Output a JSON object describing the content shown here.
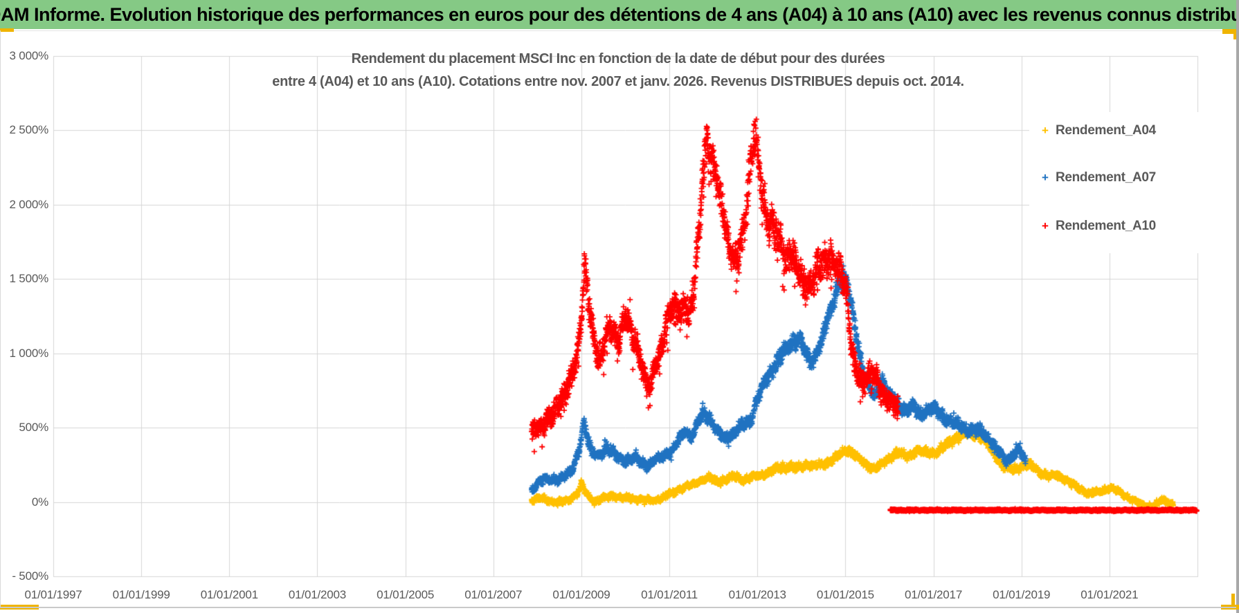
{
  "header": {
    "title": "ADAM Informe. Evolution historique des performances en euros pour des détentions de 4 ans (A04) à 10 ans (A10) avec les revenus connus distribués",
    "bg_color": "#85C985",
    "accent_color": "#EFB400"
  },
  "chart_data": {
    "type": "scatter",
    "title_line1": "Rendement du placement MSCI Inc en fonction de la date de début pour des durées",
    "title_line2": "entre 4 (A04) et 10 ans (A10). Cotations entre nov. 2007 et janv. 2026. Revenus DISTRIBUES depuis oct. 2014.",
    "title_color": "#595959",
    "grid_color": "#D6D6D6",
    "legend_position": "right",
    "x_axis": {
      "range": [
        1997,
        2023.0
      ],
      "gridline_years": [
        1997,
        1999,
        2001,
        2003,
        2005,
        2007,
        2009,
        2011,
        2013,
        2015,
        2017,
        2019,
        2021,
        2023
      ],
      "ticks": [
        {
          "label": "01/01/1997",
          "year": 1997
        },
        {
          "label": "01/01/1999",
          "year": 1999
        },
        {
          "label": "01/01/2001",
          "year": 2001
        },
        {
          "label": "01/01/2003",
          "year": 2003
        },
        {
          "label": "01/01/2005",
          "year": 2005
        },
        {
          "label": "01/01/2007",
          "year": 2007
        },
        {
          "label": "01/01/2009",
          "year": 2009
        },
        {
          "label": "01/01/2011",
          "year": 2011
        },
        {
          "label": "01/01/2013",
          "year": 2013
        },
        {
          "label": "01/01/2015",
          "year": 2015
        },
        {
          "label": "01/01/2017",
          "year": 2017
        },
        {
          "label": "01/01/2019",
          "year": 2019
        },
        {
          "label": "01/01/2021",
          "year": 2021
        }
      ]
    },
    "y_axis": {
      "range": [
        -500,
        3000
      ],
      "ticks": [
        {
          "label": "3 000%",
          "value": 3000
        },
        {
          "label": "2 500%",
          "value": 2500
        },
        {
          "label": "2 000%",
          "value": 2000
        },
        {
          "label": "1 500%",
          "value": 1500
        },
        {
          "label": "1 000%",
          "value": 1000
        },
        {
          "label": "500%",
          "value": 500
        },
        {
          "label": "0%",
          "value": 0
        },
        {
          "label": "- 500%",
          "value": -500
        }
      ]
    },
    "series": [
      {
        "name": "Rendement_A04",
        "color": "#FFC000",
        "marker": "plus",
        "in_legend": true,
        "scatter": {
          "step": 0.004,
          "jitter_base": 20,
          "jitter_scale": 0.035,
          "tail_bias": 0,
          "seed": 11
        },
        "points": [
          [
            2007.87,
            15
          ],
          [
            2008.1,
            25
          ],
          [
            2008.3,
            8
          ],
          [
            2008.5,
            0
          ],
          [
            2008.7,
            10
          ],
          [
            2008.9,
            55
          ],
          [
            2009.0,
            120
          ],
          [
            2009.1,
            55
          ],
          [
            2009.3,
            5
          ],
          [
            2009.5,
            25
          ],
          [
            2009.7,
            40
          ],
          [
            2009.9,
            30
          ],
          [
            2010.1,
            25
          ],
          [
            2010.3,
            20
          ],
          [
            2010.6,
            5
          ],
          [
            2010.9,
            35
          ],
          [
            2011.1,
            65
          ],
          [
            2011.3,
            95
          ],
          [
            2011.5,
            115
          ],
          [
            2011.7,
            145
          ],
          [
            2011.9,
            160
          ],
          [
            2012.1,
            135
          ],
          [
            2012.3,
            155
          ],
          [
            2012.5,
            170
          ],
          [
            2012.7,
            150
          ],
          [
            2012.9,
            165
          ],
          [
            2013.1,
            180
          ],
          [
            2013.3,
            205
          ],
          [
            2013.5,
            230
          ],
          [
            2013.7,
            240
          ],
          [
            2013.9,
            225
          ],
          [
            2014.1,
            250
          ],
          [
            2014.3,
            240
          ],
          [
            2014.5,
            255
          ],
          [
            2014.7,
            280
          ],
          [
            2014.9,
            325
          ],
          [
            2015.05,
            350
          ],
          [
            2015.2,
            320
          ],
          [
            2015.4,
            270
          ],
          [
            2015.6,
            225
          ],
          [
            2015.8,
            245
          ],
          [
            2016.0,
            295
          ],
          [
            2016.2,
            340
          ],
          [
            2016.4,
            305
          ],
          [
            2016.6,
            345
          ],
          [
            2016.8,
            335
          ],
          [
            2017.0,
            325
          ],
          [
            2017.2,
            360
          ],
          [
            2017.4,
            410
          ],
          [
            2017.6,
            445
          ],
          [
            2017.8,
            465
          ],
          [
            2018.0,
            455
          ],
          [
            2018.15,
            420
          ],
          [
            2018.3,
            360
          ],
          [
            2018.45,
            290
          ],
          [
            2018.6,
            235
          ],
          [
            2018.8,
            215
          ],
          [
            2019.0,
            235
          ],
          [
            2019.2,
            255
          ],
          [
            2019.4,
            205
          ],
          [
            2019.6,
            170
          ],
          [
            2019.8,
            185
          ],
          [
            2020.0,
            150
          ],
          [
            2020.2,
            115
          ],
          [
            2020.5,
            55
          ],
          [
            2020.8,
            75
          ],
          [
            2021.0,
            95
          ],
          [
            2021.2,
            75
          ],
          [
            2021.4,
            35
          ],
          [
            2021.6,
            5
          ],
          [
            2021.8,
            -25
          ],
          [
            2022.0,
            -30
          ],
          [
            2022.2,
            15
          ],
          [
            2022.45,
            -15
          ]
        ]
      },
      {
        "name": "Rendement_A07",
        "color": "#1F72C1",
        "marker": "plus",
        "in_legend": true,
        "scatter": {
          "step": 0.004,
          "jitter_base": 26,
          "jitter_scale": 0.033,
          "tail_bias": 0,
          "seed": 22
        },
        "points": [
          [
            2007.87,
            80
          ],
          [
            2008.0,
            125
          ],
          [
            2008.15,
            165
          ],
          [
            2008.3,
            140
          ],
          [
            2008.5,
            155
          ],
          [
            2008.65,
            185
          ],
          [
            2008.8,
            215
          ],
          [
            2008.95,
            340
          ],
          [
            2009.05,
            550
          ],
          [
            2009.15,
            420
          ],
          [
            2009.25,
            330
          ],
          [
            2009.4,
            305
          ],
          [
            2009.55,
            365
          ],
          [
            2009.7,
            335
          ],
          [
            2009.85,
            295
          ],
          [
            2010.0,
            275
          ],
          [
            2010.15,
            295
          ],
          [
            2010.3,
            275
          ],
          [
            2010.5,
            245
          ],
          [
            2010.7,
            285
          ],
          [
            2010.9,
            315
          ],
          [
            2011.05,
            345
          ],
          [
            2011.2,
            415
          ],
          [
            2011.35,
            470
          ],
          [
            2011.5,
            445
          ],
          [
            2011.65,
            535
          ],
          [
            2011.8,
            595
          ],
          [
            2011.95,
            545
          ],
          [
            2012.1,
            475
          ],
          [
            2012.25,
            420
          ],
          [
            2012.4,
            450
          ],
          [
            2012.55,
            495
          ],
          [
            2012.7,
            515
          ],
          [
            2012.85,
            555
          ],
          [
            2013.0,
            700
          ],
          [
            2013.2,
            820
          ],
          [
            2013.4,
            930
          ],
          [
            2013.6,
            1010
          ],
          [
            2013.8,
            1070
          ],
          [
            2013.95,
            1110
          ],
          [
            2014.1,
            990
          ],
          [
            2014.25,
            940
          ],
          [
            2014.4,
            1040
          ],
          [
            2014.55,
            1180
          ],
          [
            2014.7,
            1320
          ],
          [
            2014.85,
            1480
          ],
          [
            2014.95,
            1530
          ],
          [
            2015.05,
            1440
          ],
          [
            2015.15,
            1290
          ],
          [
            2015.25,
            1120
          ],
          [
            2015.35,
            960
          ],
          [
            2015.45,
            830
          ],
          [
            2015.55,
            770
          ],
          [
            2015.65,
            710
          ],
          [
            2015.75,
            780
          ],
          [
            2015.85,
            820
          ],
          [
            2015.95,
            745
          ],
          [
            2016.1,
            695
          ],
          [
            2016.25,
            645
          ],
          [
            2016.4,
            615
          ],
          [
            2016.55,
            640
          ],
          [
            2016.7,
            595
          ],
          [
            2016.85,
            615
          ],
          [
            2017.0,
            635
          ],
          [
            2017.15,
            595
          ],
          [
            2017.3,
            555
          ],
          [
            2017.45,
            535
          ],
          [
            2017.6,
            515
          ],
          [
            2017.75,
            495
          ],
          [
            2017.9,
            475
          ],
          [
            2018.05,
            485
          ],
          [
            2018.2,
            445
          ],
          [
            2018.35,
            395
          ],
          [
            2018.5,
            330
          ],
          [
            2018.65,
            275
          ],
          [
            2018.8,
            315
          ],
          [
            2018.95,
            345
          ],
          [
            2019.1,
            270
          ]
        ]
      },
      {
        "name": "Rendement_A10",
        "color": "#FF0000",
        "marker": "plus",
        "in_legend": true,
        "scatter": {
          "step": 0.0035,
          "jitter_base": 45,
          "jitter_scale": 0.048,
          "tail_bias": 1,
          "seed": 33
        },
        "points": [
          [
            2007.87,
            470
          ],
          [
            2008.0,
            520
          ],
          [
            2008.1,
            480
          ],
          [
            2008.2,
            545
          ],
          [
            2008.35,
            600
          ],
          [
            2008.5,
            650
          ],
          [
            2008.6,
            700
          ],
          [
            2008.7,
            790
          ],
          [
            2008.8,
            890
          ],
          [
            2008.9,
            990
          ],
          [
            2009.0,
            1230
          ],
          [
            2009.07,
            1580
          ],
          [
            2009.15,
            1390
          ],
          [
            2009.25,
            1190
          ],
          [
            2009.35,
            1000
          ],
          [
            2009.45,
            950
          ],
          [
            2009.55,
            1090
          ],
          [
            2009.65,
            1190
          ],
          [
            2009.75,
            1140
          ],
          [
            2009.85,
            1090
          ],
          [
            2009.95,
            1190
          ],
          [
            2010.05,
            1240
          ],
          [
            2010.15,
            1140
          ],
          [
            2010.25,
            1090
          ],
          [
            2010.35,
            940
          ],
          [
            2010.45,
            800
          ],
          [
            2010.55,
            750
          ],
          [
            2010.65,
            890
          ],
          [
            2010.75,
            990
          ],
          [
            2010.85,
            1090
          ],
          [
            2010.95,
            1190
          ],
          [
            2011.05,
            1290
          ],
          [
            2011.15,
            1340
          ],
          [
            2011.25,
            1290
          ],
          [
            2011.35,
            1340
          ],
          [
            2011.45,
            1240
          ],
          [
            2011.55,
            1390
          ],
          [
            2011.65,
            1780
          ],
          [
            2011.75,
            2180
          ],
          [
            2011.85,
            2420
          ],
          [
            2011.95,
            2290
          ],
          [
            2012.05,
            2190
          ],
          [
            2012.15,
            2090
          ],
          [
            2012.25,
            1940
          ],
          [
            2012.35,
            1700
          ],
          [
            2012.45,
            1600
          ],
          [
            2012.55,
            1650
          ],
          [
            2012.65,
            1790
          ],
          [
            2012.75,
            1990
          ],
          [
            2012.85,
            2290
          ],
          [
            2012.95,
            2450
          ],
          [
            2013.05,
            2230
          ],
          [
            2013.15,
            1990
          ],
          [
            2013.25,
            1890
          ],
          [
            2013.35,
            1840
          ],
          [
            2013.45,
            1790
          ],
          [
            2013.55,
            1740
          ],
          [
            2013.65,
            1650
          ],
          [
            2013.75,
            1690
          ],
          [
            2013.85,
            1590
          ],
          [
            2013.95,
            1540
          ],
          [
            2014.05,
            1490
          ],
          [
            2014.15,
            1450
          ],
          [
            2014.25,
            1490
          ],
          [
            2014.35,
            1540
          ],
          [
            2014.45,
            1590
          ],
          [
            2014.55,
            1640
          ],
          [
            2014.65,
            1690
          ],
          [
            2014.75,
            1590
          ],
          [
            2014.85,
            1540
          ],
          [
            2014.95,
            1490
          ],
          [
            2015.05,
            1390
          ],
          [
            2015.1,
            1190
          ],
          [
            2015.15,
            1040
          ],
          [
            2015.2,
            940
          ],
          [
            2015.3,
            840
          ],
          [
            2015.4,
            790
          ],
          [
            2015.5,
            840
          ],
          [
            2015.6,
            890
          ],
          [
            2015.7,
            840
          ],
          [
            2015.8,
            740
          ],
          [
            2015.9,
            690
          ],
          [
            2016.0,
            710
          ],
          [
            2016.1,
            670
          ],
          [
            2016.2,
            640
          ]
        ]
      },
      {
        "name": "Rendement_A10",
        "color": "#FF0000",
        "marker": "plus",
        "in_legend": false,
        "scatter": {
          "step": 0.0022,
          "jitter_base": 6,
          "jitter_scale": 0,
          "tail_bias": 0,
          "seed": 44
        },
        "points": [
          [
            2016.02,
            -55
          ],
          [
            2023.0,
            -55
          ]
        ]
      }
    ]
  }
}
